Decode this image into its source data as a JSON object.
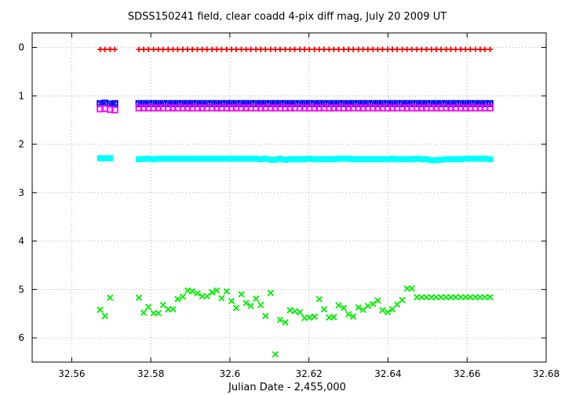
{
  "chart_data": {
    "type": "scatter",
    "title": "SDSS150241 field, clear coadd 4-pix diff mag, July 20  2009 UT",
    "xlabel": "Julian Date - 2,455,000",
    "ylabel": "",
    "xlim": [
      32.55,
      32.68
    ],
    "ylim": [
      6.5,
      -0.3
    ],
    "y_inverted": true,
    "grid": true,
    "legend": "none",
    "xticks": [
      "32.56",
      "32.58",
      "32.6",
      "32.62",
      "32.64",
      "32.66",
      "32.68"
    ],
    "yticks": [
      "0",
      "1",
      "2",
      "3",
      "4",
      "5",
      "6"
    ],
    "series": [
      {
        "marker": "plus",
        "color": "#ff0000",
        "x": [
          32.5672,
          32.5684,
          32.5697,
          32.5709,
          32.577,
          32.5782,
          32.5794,
          32.5807,
          32.5819,
          32.5831,
          32.5844,
          32.5856,
          32.5868,
          32.5881,
          32.5893,
          32.5905,
          32.5918,
          32.593,
          32.5942,
          32.5955,
          32.5967,
          32.5979,
          32.5992,
          32.6004,
          32.6016,
          32.6029,
          32.6041,
          32.6053,
          32.6066,
          32.6078,
          32.609,
          32.6103,
          32.6115,
          32.6127,
          32.614,
          32.6152,
          32.6164,
          32.6177,
          32.6189,
          32.6201,
          32.6214,
          32.6226,
          32.6238,
          32.6251,
          32.6263,
          32.6275,
          32.6288,
          32.63,
          32.6312,
          32.6325,
          32.6337,
          32.6349,
          32.6362,
          32.6374,
          32.6386,
          32.6399,
          32.6411,
          32.6423,
          32.6436,
          32.6448,
          32.646,
          32.6473,
          32.6485,
          32.6497,
          32.651,
          32.6522,
          32.6534,
          32.6547,
          32.6559,
          32.6571,
          32.6584,
          32.6596,
          32.6608,
          32.6621,
          32.6633,
          32.6645,
          32.6658
        ],
        "y": [
          0.04,
          0.04,
          0.04,
          0.04,
          0.04,
          0.04,
          0.04,
          0.04,
          0.04,
          0.04,
          0.04,
          0.04,
          0.04,
          0.04,
          0.04,
          0.04,
          0.04,
          0.04,
          0.04,
          0.04,
          0.04,
          0.04,
          0.04,
          0.04,
          0.04,
          0.04,
          0.04,
          0.04,
          0.04,
          0.04,
          0.04,
          0.04,
          0.04,
          0.04,
          0.04,
          0.04,
          0.04,
          0.04,
          0.04,
          0.04,
          0.04,
          0.04,
          0.04,
          0.04,
          0.04,
          0.04,
          0.04,
          0.04,
          0.04,
          0.04,
          0.04,
          0.04,
          0.04,
          0.04,
          0.04,
          0.04,
          0.04,
          0.04,
          0.04,
          0.04,
          0.04,
          0.04,
          0.04,
          0.04,
          0.04,
          0.04,
          0.04,
          0.04,
          0.04,
          0.04,
          0.04,
          0.04,
          0.04,
          0.04,
          0.04,
          0.04,
          0.04
        ]
      },
      {
        "marker": "box-star",
        "color": "#0000ff",
        "x": [
          32.5672,
          32.5684,
          32.5697,
          32.5709,
          32.577,
          32.5782,
          32.5794,
          32.5807,
          32.5819,
          32.5831,
          32.5844,
          32.5856,
          32.5868,
          32.5881,
          32.5893,
          32.5905,
          32.5918,
          32.593,
          32.5942,
          32.5955,
          32.5967,
          32.5979,
          32.5992,
          32.6004,
          32.6016,
          32.6029,
          32.6041,
          32.6053,
          32.6066,
          32.6078,
          32.609,
          32.6103,
          32.6115,
          32.6127,
          32.614,
          32.6152,
          32.6164,
          32.6177,
          32.6189,
          32.6201,
          32.6214,
          32.6226,
          32.6238,
          32.6251,
          32.6263,
          32.6275,
          32.6288,
          32.63,
          32.6312,
          32.6325,
          32.6337,
          32.6349,
          32.6362,
          32.6374,
          32.6386,
          32.6399,
          32.6411,
          32.6423,
          32.6436,
          32.6448,
          32.646,
          32.6473,
          32.6485,
          32.6497,
          32.651,
          32.6522,
          32.6534,
          32.6547,
          32.6559,
          32.6571,
          32.6584,
          32.6596,
          32.6608,
          32.6621,
          32.6633,
          32.6645,
          32.6658
        ],
        "y": [
          1.16,
          1.15,
          1.17,
          1.16,
          1.16,
          1.16,
          1.16,
          1.16,
          1.16,
          1.16,
          1.16,
          1.16,
          1.16,
          1.16,
          1.16,
          1.16,
          1.16,
          1.16,
          1.16,
          1.16,
          1.16,
          1.16,
          1.16,
          1.16,
          1.16,
          1.16,
          1.16,
          1.16,
          1.16,
          1.16,
          1.16,
          1.16,
          1.16,
          1.16,
          1.16,
          1.16,
          1.16,
          1.16,
          1.16,
          1.16,
          1.16,
          1.16,
          1.16,
          1.16,
          1.16,
          1.16,
          1.16,
          1.16,
          1.16,
          1.16,
          1.16,
          1.16,
          1.16,
          1.16,
          1.16,
          1.16,
          1.16,
          1.16,
          1.16,
          1.16,
          1.16,
          1.16,
          1.16,
          1.16,
          1.16,
          1.16,
          1.16,
          1.16,
          1.16,
          1.16,
          1.16,
          1.16,
          1.16,
          1.16,
          1.16,
          1.16,
          1.16
        ]
      },
      {
        "marker": "box",
        "color": "#ff00ff",
        "x": [
          32.5672,
          32.5684,
          32.5697,
          32.5709,
          32.577,
          32.5782,
          32.5794,
          32.5807,
          32.5819,
          32.5831,
          32.5844,
          32.5856,
          32.5868,
          32.5881,
          32.5893,
          32.5905,
          32.5918,
          32.593,
          32.5942,
          32.5955,
          32.5967,
          32.5979,
          32.5992,
          32.6004,
          32.6016,
          32.6029,
          32.6041,
          32.6053,
          32.6066,
          32.6078,
          32.609,
          32.6103,
          32.6115,
          32.6127,
          32.614,
          32.6152,
          32.6164,
          32.6177,
          32.6189,
          32.6201,
          32.6214,
          32.6226,
          32.6238,
          32.6251,
          32.6263,
          32.6275,
          32.6288,
          32.63,
          32.6312,
          32.6325,
          32.6337,
          32.6349,
          32.6362,
          32.6374,
          32.6386,
          32.6399,
          32.6411,
          32.6423,
          32.6436,
          32.6448,
          32.646,
          32.6473,
          32.6485,
          32.6497,
          32.651,
          32.6522,
          32.6534,
          32.6547,
          32.6559,
          32.6571,
          32.6584,
          32.6596,
          32.6608,
          32.6621,
          32.6633,
          32.6645,
          32.6658
        ],
        "y": [
          1.27,
          1.26,
          1.28,
          1.29,
          1.25,
          1.25,
          1.25,
          1.25,
          1.25,
          1.25,
          1.25,
          1.25,
          1.25,
          1.25,
          1.25,
          1.25,
          1.25,
          1.25,
          1.25,
          1.25,
          1.25,
          1.25,
          1.25,
          1.25,
          1.25,
          1.25,
          1.25,
          1.25,
          1.25,
          1.25,
          1.25,
          1.25,
          1.25,
          1.25,
          1.25,
          1.25,
          1.25,
          1.25,
          1.25,
          1.25,
          1.25,
          1.25,
          1.25,
          1.25,
          1.25,
          1.25,
          1.25,
          1.25,
          1.25,
          1.25,
          1.25,
          1.25,
          1.25,
          1.25,
          1.25,
          1.25,
          1.25,
          1.25,
          1.25,
          1.25,
          1.25,
          1.25,
          1.25,
          1.25,
          1.25,
          1.25,
          1.25,
          1.25,
          1.25,
          1.25,
          1.25,
          1.25,
          1.25,
          1.25,
          1.25,
          1.25,
          1.25
        ]
      },
      {
        "marker": "filled-box",
        "color": "#00ffff",
        "x": [
          32.5672,
          32.5684,
          32.5697,
          32.577,
          32.5782,
          32.5794,
          32.5807,
          32.5819,
          32.5831,
          32.5844,
          32.5856,
          32.5868,
          32.5881,
          32.5893,
          32.5905,
          32.5918,
          32.593,
          32.5942,
          32.5955,
          32.5967,
          32.5979,
          32.5992,
          32.6004,
          32.6016,
          32.6029,
          32.6041,
          32.6053,
          32.6066,
          32.6078,
          32.609,
          32.6103,
          32.6115,
          32.6127,
          32.614,
          32.6152,
          32.6164,
          32.6177,
          32.6189,
          32.6201,
          32.6214,
          32.6226,
          32.6238,
          32.6251,
          32.6263,
          32.6275,
          32.6288,
          32.63,
          32.6312,
          32.6325,
          32.6337,
          32.6349,
          32.6362,
          32.6374,
          32.6386,
          32.6399,
          32.6411,
          32.6423,
          32.6436,
          32.6448,
          32.646,
          32.6473,
          32.6485,
          32.6497,
          32.651,
          32.6522,
          32.6534,
          32.6547,
          32.6559,
          32.6571,
          32.6584,
          32.6596,
          32.6608,
          32.6621,
          32.6633,
          32.6645,
          32.6658
        ],
        "y": [
          2.29,
          2.29,
          2.29,
          2.31,
          2.3,
          2.3,
          2.31,
          2.3,
          2.3,
          2.3,
          2.3,
          2.3,
          2.3,
          2.3,
          2.3,
          2.3,
          2.3,
          2.3,
          2.3,
          2.3,
          2.3,
          2.3,
          2.3,
          2.3,
          2.3,
          2.3,
          2.3,
          2.3,
          2.31,
          2.3,
          2.32,
          2.32,
          2.3,
          2.32,
          2.31,
          2.31,
          2.31,
          2.31,
          2.3,
          2.31,
          2.31,
          2.31,
          2.31,
          2.31,
          2.3,
          2.3,
          2.3,
          2.31,
          2.31,
          2.31,
          2.31,
          2.31,
          2.31,
          2.31,
          2.31,
          2.3,
          2.31,
          2.31,
          2.31,
          2.31,
          2.3,
          2.31,
          2.31,
          2.33,
          2.33,
          2.32,
          2.31,
          2.31,
          2.31,
          2.31,
          2.3,
          2.3,
          2.3,
          2.3,
          2.3,
          2.31
        ]
      },
      {
        "marker": "cross",
        "color": "#00ee00",
        "x": [
          32.5672,
          32.5684,
          32.5697,
          32.577,
          32.5782,
          32.5794,
          32.5807,
          32.5819,
          32.5831,
          32.5844,
          32.5856,
          32.5868,
          32.5881,
          32.5893,
          32.5905,
          32.5918,
          32.593,
          32.5942,
          32.5955,
          32.5967,
          32.5979,
          32.5992,
          32.6004,
          32.6016,
          32.6029,
          32.6041,
          32.6053,
          32.6066,
          32.6078,
          32.609,
          32.6103,
          32.6115,
          32.6127,
          32.614,
          32.6152,
          32.6164,
          32.6177,
          32.6189,
          32.6201,
          32.6214,
          32.6226,
          32.6238,
          32.6251,
          32.6263,
          32.6275,
          32.6288,
          32.63,
          32.6312,
          32.6325,
          32.6337,
          32.6349,
          32.6362,
          32.6374,
          32.6386,
          32.6399,
          32.6411,
          32.6423,
          32.6436,
          32.6448,
          32.646,
          32.6473,
          32.6485,
          32.6497,
          32.651,
          32.6522,
          32.6534,
          32.6547,
          32.6559,
          32.6571,
          32.6584,
          32.6596,
          32.6608,
          32.6621,
          32.6633,
          32.6645,
          32.6658
        ],
        "y": [
          5.42,
          5.55,
          5.17,
          5.17,
          5.48,
          5.36,
          5.49,
          5.49,
          5.32,
          5.41,
          5.41,
          5.2,
          5.15,
          5.02,
          5.04,
          5.08,
          5.14,
          5.14,
          5.06,
          5.02,
          5.18,
          5.04,
          5.24,
          5.38,
          5.1,
          5.28,
          5.34,
          5.19,
          5.32,
          5.55,
          5.07,
          6.34,
          5.63,
          5.68,
          5.43,
          5.45,
          5.47,
          5.59,
          5.58,
          5.56,
          5.2,
          5.41,
          5.58,
          5.57,
          5.33,
          5.38,
          5.51,
          5.56,
          5.37,
          5.42,
          5.34,
          5.3,
          5.23,
          5.43,
          5.47,
          5.41,
          5.31,
          5.22,
          4.98,
          4.98,
          5.16,
          5.16,
          5.16,
          5.16,
          5.16,
          5.16,
          5.16,
          5.16,
          5.16,
          5.16,
          5.16,
          5.16,
          5.16,
          5.16,
          5.16,
          5.16
        ]
      }
    ]
  }
}
